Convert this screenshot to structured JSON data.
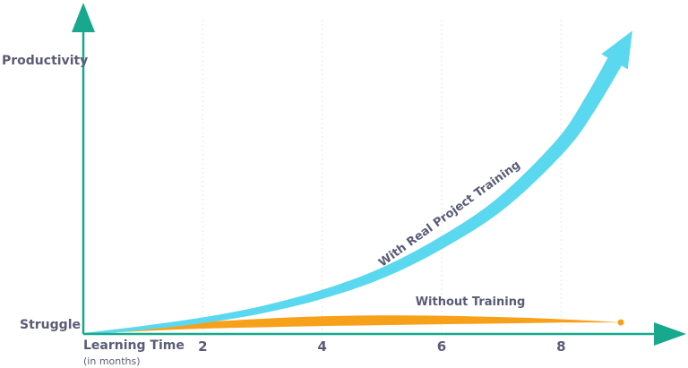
{
  "chart_data": {
    "type": "line",
    "xlabel": "Learning Time",
    "xlabel_sub": "(in months)",
    "ytop_label": "Productivity",
    "ybottom_label": "Struggle",
    "x_ticks": [
      2,
      4,
      6,
      8
    ],
    "xlim": [
      0,
      9.5
    ],
    "ylim": [
      0,
      1
    ],
    "grid": "vertical dashed gridlines at ticks",
    "series": [
      {
        "name": "With Real Project Training",
        "color": "#5ad8f0",
        "x": [
          0,
          1,
          2,
          3,
          4,
          5,
          6,
          7,
          8,
          8.5,
          9
        ],
        "y": [
          0,
          0.02,
          0.045,
          0.08,
          0.13,
          0.2,
          0.3,
          0.43,
          0.62,
          0.76,
          0.93
        ]
      },
      {
        "name": "Without Training",
        "color": "#f7a11a",
        "x": [
          0,
          1,
          2,
          3,
          4,
          5,
          6,
          7,
          8,
          9
        ],
        "y": [
          0,
          0.015,
          0.028,
          0.036,
          0.042,
          0.045,
          0.046,
          0.045,
          0.043,
          0.038
        ]
      }
    ],
    "axis_color": "#17a88e"
  }
}
